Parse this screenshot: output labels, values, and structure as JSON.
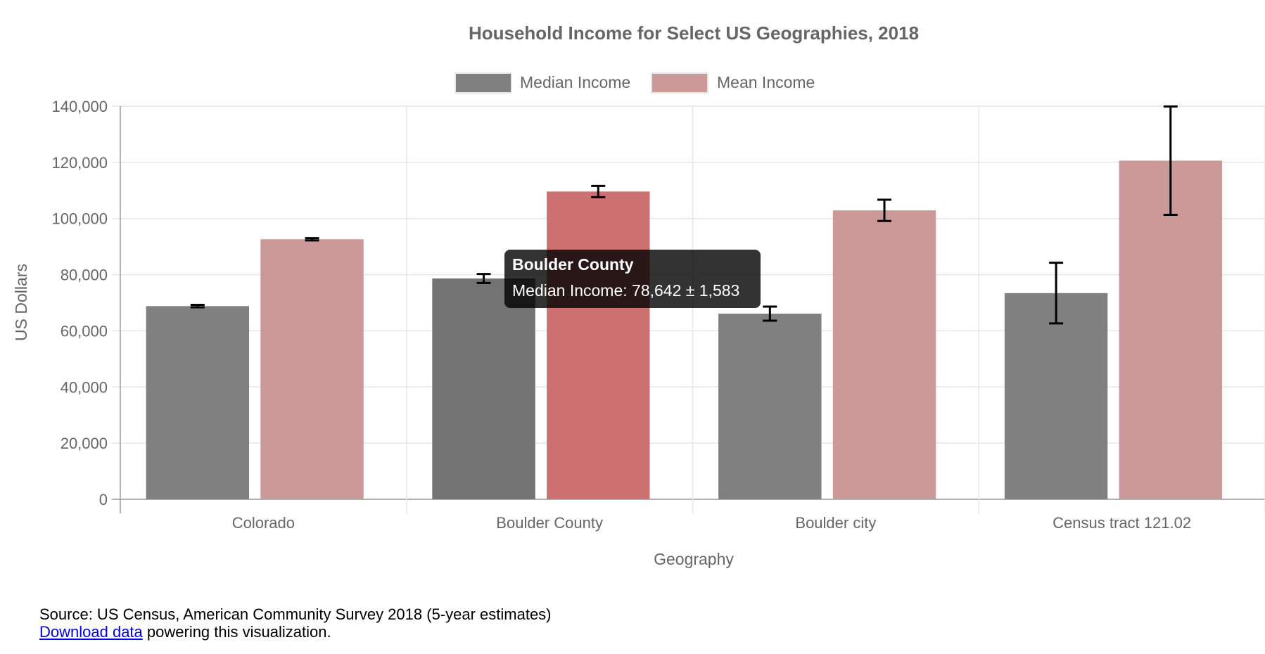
{
  "chart_data": {
    "type": "bar",
    "title": "Household Income for Select US Geographies, 2018",
    "xlabel": "Geography",
    "ylabel": "US Dollars",
    "categories": [
      "Colorado",
      "Boulder County",
      "Boulder city",
      "Census tract 121.02"
    ],
    "ylim": [
      0,
      140000
    ],
    "y_ticks": [
      "0",
      "20,000",
      "40,000",
      "60,000",
      "80,000",
      "100,000",
      "120,000",
      "140,000"
    ],
    "grid": true,
    "legend_position": "top",
    "series": [
      {
        "name": "Median Income",
        "color": "#808080",
        "hover_color": "#737373",
        "values": [
          68811,
          78642,
          66117,
          73438
        ],
        "errors": [
          450,
          1583,
          2500,
          10800
        ]
      },
      {
        "name": "Mean Income",
        "color": "#cc9999",
        "hover_color": "#cd7070",
        "values": [
          92600,
          109600,
          102900,
          120600
        ],
        "errors": [
          400,
          2000,
          3800,
          19300
        ]
      }
    ],
    "highlight": {
      "category_index": 1
    }
  },
  "tooltip": {
    "title": "Boulder County",
    "body": "Median Income: 78,642 ± 1,583"
  },
  "footer": {
    "source": "Source: US Census, American Community Survey 2018 (5-year estimates)",
    "link_text": "Download data",
    "rest": " powering this visualization."
  }
}
